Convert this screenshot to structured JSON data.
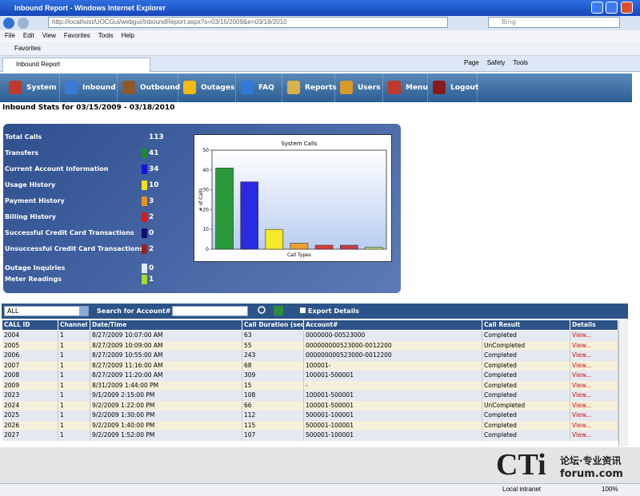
{
  "window": {
    "title": "Inbound Report - Windows Internet Explorer",
    "url": "http://localhost/UOCGui/webgui/InboundReport.aspx?s=03/15/2009&e=03/18/2010",
    "search": "Bing",
    "menu": [
      "File",
      "Edit",
      "View",
      "Favorites",
      "Tools",
      "Help"
    ],
    "favorites": "Favorites",
    "tab": "Inbound Report",
    "commands": [
      "Page",
      "Safety",
      "Tools"
    ],
    "status": "Local intranet",
    "zoom": "100%"
  },
  "nav": [
    "System",
    "Inbound",
    "Outbound",
    "Outages",
    "FAQ",
    "Reports",
    "Users",
    "Menu",
    "Logout"
  ],
  "heading": "Inbound Stats for 03/15/2009 - 03/18/2010",
  "stats": [
    {
      "label": "Total Calls",
      "value": 113
    },
    {
      "label": "Transfers",
      "value": 41,
      "color": "#1f8a2c"
    },
    {
      "label": "Current Account Information",
      "value": 34,
      "color": "#1414d8"
    },
    {
      "label": "Usage History",
      "value": 10,
      "color": "#f2e21a"
    },
    {
      "label": "Payment History",
      "value": 3,
      "color": "#e8951c"
    },
    {
      "label": "Billing History",
      "value": 2,
      "color": "#d61c1c"
    },
    {
      "label": "Successful Credit Card Transactions",
      "value": 0,
      "color": "#0d0d6e"
    },
    {
      "label": "Unsuccessful Credit Card Transactions",
      "value": 2,
      "color": "#8e2424"
    },
    {
      "label": "Outage Inquiries",
      "value": 0,
      "color": "#dfe9f7"
    },
    {
      "label": "Meter Readings",
      "value": 1,
      "color": "#a6dc2c"
    }
  ],
  "chart_data": {
    "type": "bar",
    "title": "System Calls",
    "y_label": "# of Calls",
    "x_label": "Call Types",
    "categories": [
      null,
      null,
      null,
      null,
      null,
      null,
      null
    ],
    "values": [
      41,
      34,
      10,
      3,
      2,
      2,
      1
    ],
    "colors": [
      "#2a9a3a",
      "#2a2ae0",
      "#f4ea2a",
      "#eca030",
      "#d83a3a",
      "#c43a4a",
      "#b8e06a"
    ],
    "ylim": [
      0,
      50
    ],
    "yticks": [
      0,
      10,
      20,
      30,
      40,
      50
    ]
  },
  "filter": {
    "select": "ALL",
    "search_label": "Search for Account#",
    "export": "Export Details"
  },
  "table": {
    "columns": [
      "CALL ID",
      "Channel",
      "Date/Time",
      "Call Duration (sec)",
      "Account#",
      "Call Result",
      "Details"
    ],
    "rows": [
      [
        "2004",
        "1",
        "8/27/2009 10:07:00 AM",
        "63",
        "0000000-00523000",
        "Completed",
        "View..."
      ],
      [
        "2005",
        "1",
        "8/27/2009 10:09:00 AM",
        "55",
        "000000000523000-0012200",
        "UnCompleted",
        "View..."
      ],
      [
        "2006",
        "1",
        "8/27/2009 10:55:00 AM",
        "243",
        "000000000523000-0012200",
        "Completed",
        "View..."
      ],
      [
        "2007",
        "1",
        "8/27/2009 11:16:00 AM",
        "68",
        "100001-",
        "Completed",
        "View..."
      ],
      [
        "2008",
        "1",
        "8/27/2009 11:20:00 AM",
        "309",
        "100001-500001",
        "Completed",
        "View..."
      ],
      [
        "2009",
        "1",
        "8/31/2009 1:44:00 PM",
        "15",
        "-",
        "Completed",
        "View..."
      ],
      [
        "2023",
        "1",
        "9/1/2009 2:15:00 PM",
        "108",
        "100001-500001",
        "Completed",
        "View..."
      ],
      [
        "2024",
        "1",
        "9/2/2009 1:22:00 PM",
        "66",
        "100001-500001",
        "UnCompleted",
        "View..."
      ],
      [
        "2025",
        "1",
        "9/2/2009 1:30:00 PM",
        "112",
        "500001-100001",
        "Completed",
        "View..."
      ],
      [
        "2026",
        "1",
        "9/2/2009 1:40:00 PM",
        "115",
        "500001-100001",
        "Completed",
        "View..."
      ],
      [
        "2027",
        "1",
        "9/2/2009 1:52:00 PM",
        "107",
        "500001-100001",
        "Completed",
        "View..."
      ]
    ]
  },
  "watermark": {
    "brand": "CTi",
    "tagline": "论坛·专业资讯",
    "domain": "forum.com"
  }
}
